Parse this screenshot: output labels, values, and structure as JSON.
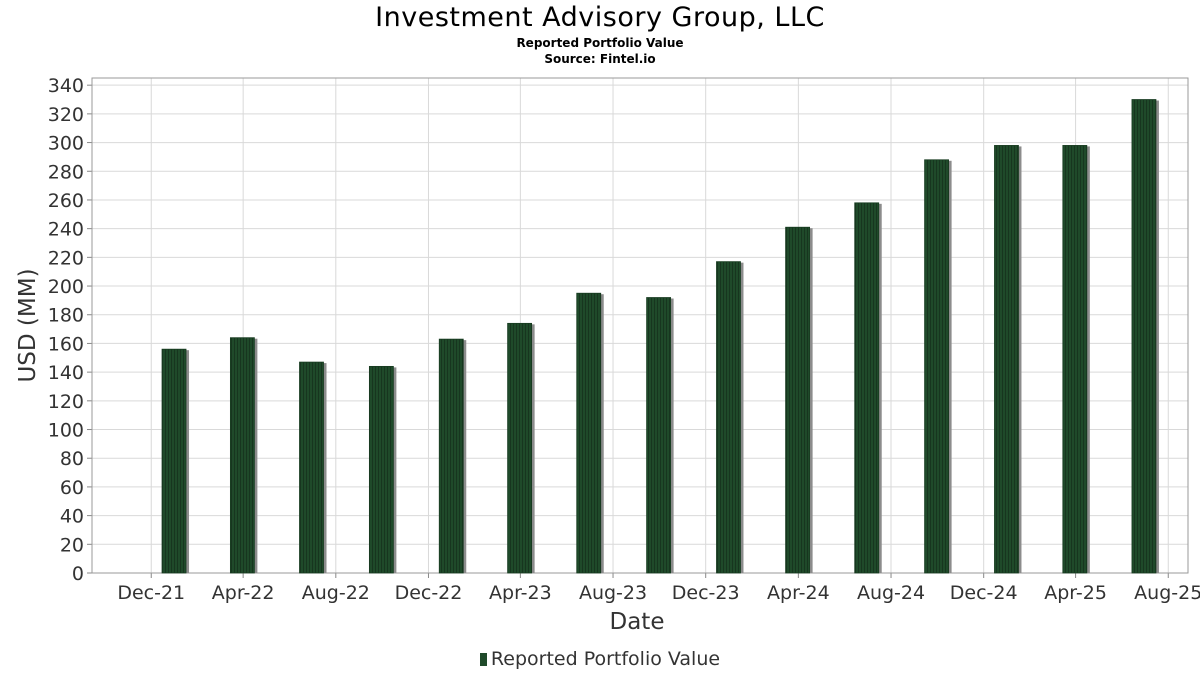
{
  "chart_data": {
    "type": "bar",
    "title": "Investment Advisory Group, LLC",
    "subtitles": [
      "Reported Portfolio Value",
      "Source: Fintel.io"
    ],
    "xlabel": "Date",
    "ylabel": "USD (MM)",
    "ylim": [
      0,
      345
    ],
    "yticks": [
      0,
      20,
      40,
      60,
      80,
      100,
      120,
      140,
      160,
      180,
      200,
      220,
      240,
      260,
      280,
      300,
      320,
      340
    ],
    "x_range": [
      "2021-09-14",
      "2025-08-27"
    ],
    "xticks": [
      {
        "date": "2021-12-01",
        "label": "Dec-21"
      },
      {
        "date": "2022-04-01",
        "label": "Apr-22"
      },
      {
        "date": "2022-08-01",
        "label": "Aug-22"
      },
      {
        "date": "2022-12-01",
        "label": "Dec-22"
      },
      {
        "date": "2023-04-01",
        "label": "Apr-23"
      },
      {
        "date": "2023-08-01",
        "label": "Aug-23"
      },
      {
        "date": "2023-12-01",
        "label": "Dec-23"
      },
      {
        "date": "2024-04-01",
        "label": "Apr-24"
      },
      {
        "date": "2024-08-01",
        "label": "Aug-24"
      },
      {
        "date": "2024-12-01",
        "label": "Dec-24"
      },
      {
        "date": "2025-04-01",
        "label": "Apr-25"
      },
      {
        "date": "2025-08-01",
        "label": "Aug-25"
      }
    ],
    "series": [
      {
        "name": "Reported Portfolio Value",
        "color": "#1f4a2a",
        "points": [
          {
            "date": "2021-12-31",
            "value": 156
          },
          {
            "date": "2022-03-31",
            "value": 164
          },
          {
            "date": "2022-06-30",
            "value": 147
          },
          {
            "date": "2022-09-30",
            "value": 144
          },
          {
            "date": "2022-12-31",
            "value": 163
          },
          {
            "date": "2023-03-31",
            "value": 174
          },
          {
            "date": "2023-06-30",
            "value": 195
          },
          {
            "date": "2023-09-30",
            "value": 192
          },
          {
            "date": "2023-12-31",
            "value": 217
          },
          {
            "date": "2024-03-31",
            "value": 241
          },
          {
            "date": "2024-06-30",
            "value": 258
          },
          {
            "date": "2024-09-30",
            "value": 288
          },
          {
            "date": "2024-12-31",
            "value": 298
          },
          {
            "date": "2025-03-31",
            "value": 298
          },
          {
            "date": "2025-06-30",
            "value": 330
          }
        ]
      }
    ],
    "grid": true,
    "legend_position": "bottom-center"
  }
}
